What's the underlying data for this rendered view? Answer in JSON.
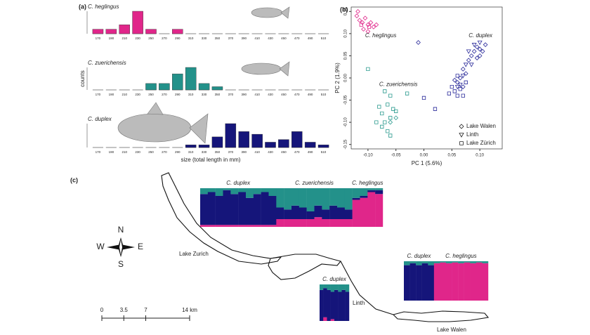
{
  "panel_labels": [
    "(a)",
    "(b)",
    "(c)"
  ],
  "chart_data": [
    {
      "type": "histogram",
      "title": "C. heglingus",
      "color": "#e0268a",
      "categories": [
        "170",
        "190",
        "210",
        "230",
        "250",
        "270",
        "290",
        "310",
        "330",
        "350",
        "370",
        "390",
        "410",
        "430",
        "450",
        "470",
        "490",
        "510"
      ],
      "values": [
        1,
        1,
        2,
        5,
        1,
        0,
        1,
        0,
        0,
        0,
        0,
        0,
        0,
        0,
        0,
        0,
        0,
        0
      ],
      "ylim": [
        0,
        5
      ]
    },
    {
      "type": "histogram",
      "title": "C. zuerichensis",
      "color": "#23918a",
      "ylabel": "counts",
      "categories": [
        "170",
        "190",
        "210",
        "230",
        "250",
        "270",
        "290",
        "310",
        "330",
        "350",
        "370",
        "390",
        "410",
        "430",
        "450",
        "470",
        "490",
        "510"
      ],
      "values": [
        0,
        0,
        0,
        0,
        2,
        2,
        5,
        7,
        2,
        1,
        0,
        0,
        0,
        0,
        0,
        0,
        0,
        0
      ],
      "ylim": [
        0,
        7
      ]
    },
    {
      "type": "histogram",
      "title": "C. duplex",
      "color": "#15157a",
      "xlabel": "size (total length in mm)",
      "categories": [
        "170",
        "190",
        "210",
        "230",
        "250",
        "270",
        "290",
        "310",
        "330",
        "350",
        "370",
        "390",
        "410",
        "430",
        "450",
        "470",
        "490",
        "510"
      ],
      "values": [
        0,
        0,
        0,
        0,
        0,
        0,
        0,
        1,
        1,
        4,
        9,
        6,
        5,
        2,
        3,
        6,
        2,
        1
      ],
      "ylim": [
        0,
        9
      ]
    },
    {
      "type": "scatter",
      "xlabel": "PC 1 (5.6%)",
      "ylabel": "PC 2 (1.9%)",
      "xlim": [
        -0.13,
        0.14
      ],
      "ylim": [
        -0.16,
        0.16
      ],
      "xticks": [
        {
          "value": -0.1,
          "label": "-0.10"
        },
        {
          "value": -0.05,
          "label": "-0.05"
        },
        {
          "value": 0,
          "label": "0.00"
        },
        {
          "value": 0.05,
          "label": "0.05"
        },
        {
          "value": 0.1,
          "label": "0.10"
        }
      ],
      "yticks": [
        {
          "value": -0.15,
          "label": "-0.15"
        },
        {
          "value": -0.1,
          "label": "-0.10"
        },
        {
          "value": -0.05,
          "label": "-0.05"
        },
        {
          "value": 0,
          "label": "0.00"
        },
        {
          "value": 0.05,
          "label": "0.05"
        },
        {
          "value": 0.1,
          "label": "0.10"
        },
        {
          "value": 0.15,
          "label": "0.15"
        }
      ],
      "annotations": [
        "C. heglingus",
        "C. duplex",
        "C. zuerichensis"
      ],
      "legend_position": "lower right",
      "legend": [
        {
          "label": "Lake Walen",
          "marker": "diamond"
        },
        {
          "label": "Linth",
          "marker": "triangle"
        },
        {
          "label": "Lake Zürich",
          "marker": "square"
        }
      ],
      "series": [
        {
          "marker": "diamond",
          "color": "#e0268a",
          "x": [
            -0.12,
            -0.115,
            -0.11,
            -0.105,
            -0.1,
            -0.095,
            -0.09,
            -0.085,
            -0.108,
            -0.118,
            -0.1
          ],
          "y": [
            0.14,
            0.13,
            0.125,
            0.135,
            0.12,
            0.125,
            0.115,
            0.12,
            0.11,
            0.15,
            0.105
          ]
        },
        {
          "marker": "square",
          "color": "#e0268a",
          "x": [
            -0.112,
            -0.098
          ],
          "y": [
            0.12,
            0.115
          ]
        },
        {
          "marker": "diamond",
          "color": "#2a2a9a",
          "x": [
            0.095,
            0.1,
            0.105,
            0.09,
            0.11,
            0.085,
            0.095,
            0.1,
            0.08,
            0.07,
            0.075,
            0.065,
            0.06,
            0.07,
            0.055,
            -0.01
          ],
          "y": [
            0.07,
            0.065,
            0.06,
            0.06,
            0.075,
            0.05,
            0.045,
            0.05,
            0.04,
            0.02,
            0.01,
            0,
            -0.01,
            -0.02,
            -0.005,
            0.08
          ]
        },
        {
          "marker": "triangle",
          "color": "#2a2a9a",
          "x": [
            0.1,
            0.09,
            0.08,
            0.085,
            0.075,
            0.07,
            0.06,
            0.065
          ],
          "y": [
            0.08,
            0.075,
            0.06,
            0.03,
            0.03,
            0.005,
            -0.02,
            -0.015
          ]
        },
        {
          "marker": "square",
          "color": "#2a2a9a",
          "x": [
            0.055,
            0.06,
            0.065,
            0.05,
            0.045,
            0.07,
            0.02,
            0,
            0.06,
            0.075
          ],
          "y": [
            -0.03,
            -0.04,
            -0.025,
            -0.02,
            -0.035,
            -0.04,
            -0.07,
            -0.045,
            0.005,
            -0.01
          ]
        },
        {
          "marker": "square",
          "color": "#2a9a8e",
          "x": [
            -0.1,
            -0.07,
            -0.06,
            -0.065,
            -0.055,
            -0.075,
            -0.06,
            -0.07,
            -0.065,
            -0.06,
            -0.075,
            -0.05,
            -0.08,
            -0.03,
            -0.085
          ],
          "y": [
            0.02,
            -0.03,
            -0.04,
            -0.06,
            -0.07,
            -0.08,
            -0.09,
            -0.1,
            -0.12,
            -0.13,
            -0.11,
            -0.075,
            -0.065,
            -0.035,
            -0.1
          ]
        },
        {
          "marker": "diamond",
          "color": "#2a9a8e",
          "x": [
            -0.06,
            -0.05
          ],
          "y": [
            -0.1,
            -0.09
          ]
        }
      ]
    },
    {
      "type": "structure",
      "ylim": [
        0,
        1
      ],
      "group_labels": [
        "C. duplex",
        "C. zuerichensis",
        "C. heglingus"
      ],
      "group_sizes": [
        10,
        10,
        4
      ],
      "series": [
        {
          "color": "#e0268a",
          "values": [
            0.05,
            0.05,
            0.05,
            0.05,
            0.05,
            0.05,
            0.05,
            0.05,
            0.05,
            0.05,
            0.2,
            0.2,
            0.2,
            0.2,
            0.2,
            0.25,
            0.2,
            0.2,
            0.2,
            0.2,
            0.7,
            0.75,
            0.9,
            0.85
          ]
        },
        {
          "color": "#15157a",
          "values": [
            0.8,
            0.85,
            0.75,
            0.9,
            0.8,
            0.85,
            0.7,
            0.8,
            0.85,
            0.75,
            0.3,
            0.25,
            0.35,
            0.3,
            0.2,
            0.3,
            0.25,
            0.35,
            0.3,
            0.25,
            0.05,
            0.05,
            0.05,
            0.1
          ]
        },
        {
          "color": "#23918a",
          "values": [
            0.15,
            0.1,
            0.2,
            0.05,
            0.15,
            0.1,
            0.25,
            0.15,
            0.1,
            0.2,
            0.5,
            0.55,
            0.45,
            0.5,
            0.6,
            0.45,
            0.55,
            0.45,
            0.5,
            0.55,
            0.25,
            0.2,
            0.05,
            0.05
          ]
        }
      ]
    },
    {
      "type": "structure",
      "ylim": [
        0,
        1
      ],
      "group_labels": [
        "C. duplex"
      ],
      "group_sizes": [
        8
      ],
      "series": [
        {
          "color": "#e0268a",
          "values": [
            0,
            0.1,
            0,
            0.05,
            0,
            0,
            0,
            0
          ]
        },
        {
          "color": "#15157a",
          "values": [
            0.85,
            0.8,
            0.85,
            0.75,
            0.85,
            0.8,
            0.85,
            0.8
          ]
        },
        {
          "color": "#23918a",
          "values": [
            0.15,
            0.1,
            0.15,
            0.2,
            0.15,
            0.2,
            0.15,
            0.2
          ]
        }
      ]
    },
    {
      "type": "structure",
      "ylim": [
        0,
        1
      ],
      "group_labels": [
        "C. duplex",
        "C. heglingus"
      ],
      "group_sizes": [
        5,
        9
      ],
      "series": [
        {
          "color": "#e0268a",
          "values": [
            0,
            0,
            0,
            0,
            0,
            0.95,
            0.97,
            0.95,
            0.97,
            0.95,
            0.97,
            0.95,
            0.97,
            0.95
          ]
        },
        {
          "color": "#15157a",
          "values": [
            0.9,
            0.95,
            0.9,
            0.95,
            0.9,
            0,
            0,
            0,
            0,
            0,
            0,
            0,
            0,
            0
          ]
        },
        {
          "color": "#23918a",
          "values": [
            0.1,
            0.05,
            0.1,
            0.05,
            0.1,
            0.05,
            0.03,
            0.05,
            0.03,
            0.05,
            0.03,
            0.05,
            0.03,
            0.05
          ]
        }
      ]
    }
  ],
  "map": {
    "lake_zurich": "Lake Zurich",
    "linth": "Linth",
    "lake_walen": "Lake Walen",
    "compass": {
      "n": "N",
      "e": "E",
      "s": "S",
      "w": "W"
    },
    "scale_ticks": [
      0,
      3.5,
      7,
      {
        "value": 14,
        "label": "14 km"
      }
    ]
  }
}
